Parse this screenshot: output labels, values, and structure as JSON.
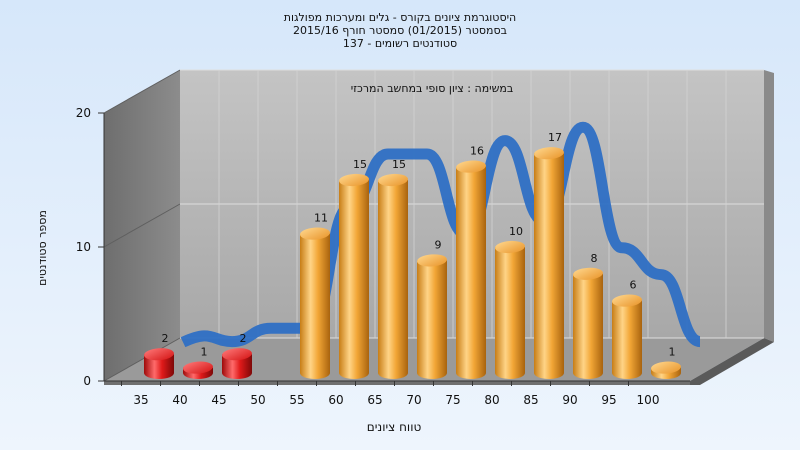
{
  "chart_data": {
    "type": "bar",
    "title_lines": [
      "היסטוגרמת ציונים בקורס - גלים ומערכות מפולגות",
      "בסמסטר  (01/2015)  סמסטר חורף 2015/16",
      "סטודנטים רשומים - 137"
    ],
    "subtitle": "במשימה : ציון סופי במחשב המרכזי",
    "xlabel": "טווח ציונים",
    "ylabel": "מספר סטודנטים",
    "ylim": [
      0,
      20
    ],
    "y_ticks": [
      "0",
      "10",
      "20"
    ],
    "categories": [
      "35",
      "40",
      "45",
      "50",
      "55",
      "60",
      "65",
      "70",
      "75",
      "80",
      "85",
      "90",
      "95",
      "100"
    ],
    "values": [
      2,
      1,
      2,
      null,
      11,
      15,
      15,
      9,
      16,
      10,
      17,
      8,
      6,
      1
    ],
    "value_labels": [
      "2",
      "1",
      "2",
      "",
      "11",
      "15",
      "15",
      "9",
      "16",
      "10",
      "17",
      "8",
      "6",
      "1"
    ],
    "fail_threshold_count": 3,
    "colors": {
      "fail_bar": "#e01a1a",
      "pass_bar": "#f2a636",
      "trend_line": "#2e6fc4",
      "back_wall": "#b6b6b6",
      "side_wall": "#7e7e7e",
      "floor": "#9a9a9a"
    }
  }
}
